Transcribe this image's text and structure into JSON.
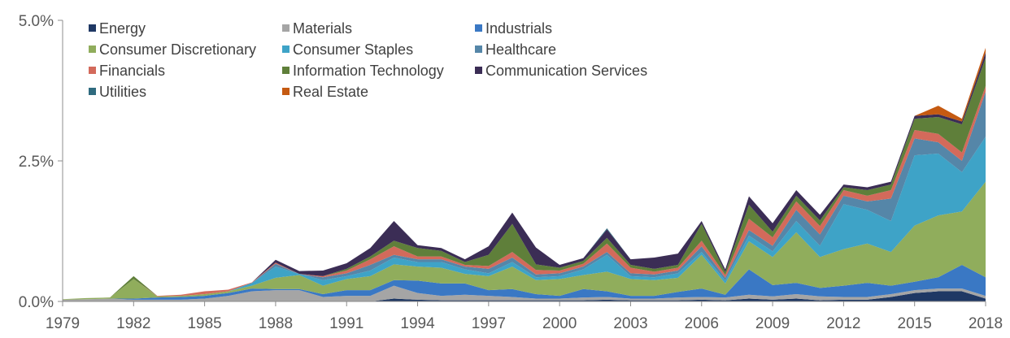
{
  "chart_data": {
    "type": "area",
    "stacked": true,
    "x": [
      "1979",
      "1980",
      "1981",
      "1982",
      "1983",
      "1984",
      "1985",
      "1986",
      "1987",
      "1988",
      "1989",
      "1990",
      "1991",
      "1992",
      "1993",
      "1994",
      "1995",
      "1996",
      "1997",
      "1998",
      "1999",
      "2000",
      "2001",
      "2002",
      "2003",
      "2004",
      "2005",
      "2006",
      "2007",
      "2008",
      "2009",
      "2010",
      "2011",
      "2012",
      "2013",
      "2014",
      "2015",
      "2016",
      "2017",
      "2018"
    ],
    "x_tick_labels": [
      "1979",
      "1982",
      "1985",
      "1988",
      "1991",
      "1994",
      "1997",
      "2000",
      "2003",
      "2006",
      "2009",
      "2012",
      "2015",
      "2018"
    ],
    "y_tick_labels": [
      "0.0%",
      "2.5%",
      "5.0%"
    ],
    "ylim": [
      0,
      5.0
    ],
    "grid": false,
    "legend_position": "top-left",
    "series": [
      {
        "name": "Energy",
        "color": "#1f3864",
        "values": [
          0,
          0,
          0,
          0,
          0,
          0,
          0,
          0,
          0,
          0,
          0,
          0,
          0,
          0,
          0.05,
          0.03,
          0.02,
          0.02,
          0.02,
          0.02,
          0.02,
          0.02,
          0.02,
          0.03,
          0.02,
          0.02,
          0.02,
          0.03,
          0.02,
          0.05,
          0.03,
          0.05,
          0.02,
          0.03,
          0.03,
          0.08,
          0.15,
          0.18,
          0.18,
          0.05
        ]
      },
      {
        "name": "Materials",
        "color": "#a5a5a5",
        "values": [
          0.03,
          0.04,
          0.05,
          0.03,
          0.03,
          0.03,
          0.05,
          0.1,
          0.18,
          0.2,
          0.2,
          0.08,
          0.1,
          0.1,
          0.23,
          0.12,
          0.08,
          0.1,
          0.08,
          0.06,
          0.03,
          0.03,
          0.05,
          0.05,
          0.03,
          0.03,
          0.05,
          0.05,
          0.05,
          0.07,
          0.06,
          0.08,
          0.07,
          0.05,
          0.05,
          0.05,
          0.05,
          0.05,
          0.05,
          0.05
        ]
      },
      {
        "name": "Industrials",
        "color": "#3a78c4",
        "values": [
          0,
          0,
          0,
          0.02,
          0.04,
          0.05,
          0.05,
          0.05,
          0.05,
          0.02,
          0.02,
          0.05,
          0.1,
          0.1,
          0.1,
          0.22,
          0.22,
          0.2,
          0.1,
          0.14,
          0.08,
          0.05,
          0.15,
          0.1,
          0.05,
          0.05,
          0.1,
          0.15,
          0.05,
          0.45,
          0.2,
          0.2,
          0.15,
          0.2,
          0.25,
          0.15,
          0.15,
          0.2,
          0.42,
          0.33
        ]
      },
      {
        "name": "Consumer Discretionary",
        "color": "#90ad5c",
        "values": [
          0.01,
          0.02,
          0.02,
          0.35,
          0.02,
          0.02,
          0.03,
          0.03,
          0.05,
          0.2,
          0.25,
          0.15,
          0.2,
          0.25,
          0.28,
          0.25,
          0.28,
          0.17,
          0.25,
          0.4,
          0.25,
          0.3,
          0.25,
          0.35,
          0.3,
          0.28,
          0.25,
          0.6,
          0.2,
          0.5,
          0.5,
          0.9,
          0.55,
          0.65,
          0.7,
          0.6,
          1.0,
          1.1,
          0.95,
          1.7
        ]
      },
      {
        "name": "Consumer Staples",
        "color": "#3ea3c7",
        "values": [
          0,
          0,
          0,
          0,
          0,
          0,
          0,
          0,
          0.05,
          0.2,
          0.02,
          0.1,
          0.05,
          0.1,
          0.12,
          0.08,
          0.1,
          0.08,
          0.05,
          0.08,
          0.05,
          0.05,
          0.1,
          0.3,
          0.05,
          0.05,
          0.08,
          0.05,
          0.05,
          0.1,
          0.1,
          0.2,
          0.2,
          0.8,
          0.6,
          0.55,
          1.25,
          1.1,
          0.7,
          0.8
        ]
      },
      {
        "name": "Healthcare",
        "color": "#5586a8",
        "values": [
          0,
          0,
          0,
          0,
          0,
          0,
          0,
          0,
          0,
          0.05,
          0,
          0.05,
          0.05,
          0.1,
          0.05,
          0.05,
          0.05,
          0.05,
          0.08,
          0.08,
          0.05,
          0.05,
          0.05,
          0.05,
          0.05,
          0.05,
          0.05,
          0.1,
          0.05,
          0.1,
          0.1,
          0.2,
          0.2,
          0.15,
          0.15,
          0.4,
          0.3,
          0.2,
          0.2,
          0.8
        ]
      },
      {
        "name": "Financials",
        "color": "#d36a5b",
        "values": [
          0,
          0,
          0,
          0,
          0.01,
          0.02,
          0.05,
          0.03,
          0.01,
          0.02,
          0,
          0.02,
          0.05,
          0.1,
          0.15,
          0.05,
          0.05,
          0.03,
          0.05,
          0.1,
          0.08,
          0.05,
          0.05,
          0.15,
          0.1,
          0.05,
          0.05,
          0.1,
          0.05,
          0.2,
          0.15,
          0.15,
          0.15,
          0.1,
          0.1,
          0.15,
          0.15,
          0.15,
          0.15,
          0.1
        ]
      },
      {
        "name": "Information Technology",
        "color": "#5f7f3a",
        "values": [
          0,
          0,
          0,
          0.05,
          0,
          0,
          0,
          0,
          0,
          0,
          0,
          0,
          0.03,
          0.05,
          0.1,
          0.15,
          0.1,
          0.05,
          0.2,
          0.5,
          0.1,
          0.05,
          0.05,
          0.1,
          0.05,
          0.05,
          0.05,
          0.3,
          0.05,
          0.25,
          0.1,
          0.1,
          0.1,
          0.05,
          0.1,
          0.1,
          0.2,
          0.3,
          0.5,
          0.5
        ]
      },
      {
        "name": "Communication Services",
        "color": "#3b2d55",
        "values": [
          0,
          0,
          0,
          0,
          0,
          0,
          0,
          0,
          0,
          0.05,
          0.05,
          0.1,
          0.1,
          0.15,
          0.35,
          0.05,
          0.05,
          0.05,
          0.15,
          0.2,
          0.3,
          0.05,
          0.05,
          0.15,
          0.1,
          0.2,
          0.2,
          0.05,
          0.05,
          0.15,
          0.15,
          0.1,
          0.1,
          0.05,
          0.05,
          0.05,
          0.05,
          0.05,
          0.05,
          0.1
        ]
      },
      {
        "name": "Utilities",
        "color": "#2f6b7f",
        "values": [
          0,
          0,
          0,
          0,
          0,
          0,
          0,
          0,
          0,
          0,
          0,
          0,
          0,
          0,
          0,
          0,
          0,
          0,
          0,
          0,
          0,
          0,
          0,
          0.02,
          0,
          0,
          0,
          0,
          0,
          0,
          0,
          0,
          0,
          0,
          0,
          0,
          0,
          0,
          0,
          0
        ]
      },
      {
        "name": "Real Estate",
        "color": "#c55a11",
        "values": [
          0,
          0,
          0,
          0,
          0,
          0,
          0,
          0,
          0,
          0,
          0,
          0,
          0,
          0,
          0,
          0,
          0,
          0,
          0,
          0,
          0,
          0,
          0,
          0,
          0,
          0,
          0,
          0,
          0,
          0,
          0,
          0,
          0,
          0,
          0,
          0,
          0,
          0.15,
          0.05,
          0.08
        ]
      }
    ]
  }
}
